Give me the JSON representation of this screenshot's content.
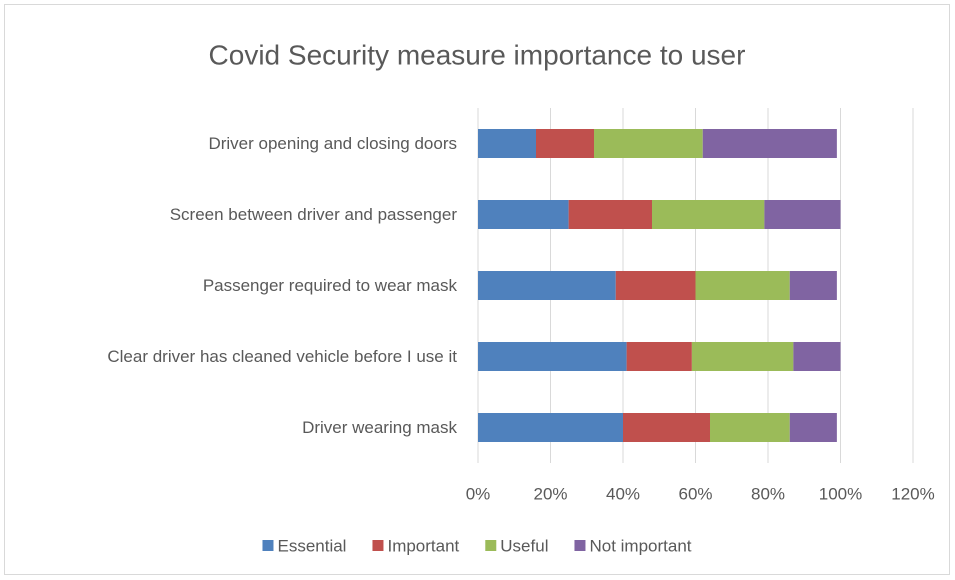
{
  "chart_data": {
    "type": "stacked-barh",
    "title": "Covid Security measure importance to user",
    "categories": [
      "Driver opening and closing doors",
      "Screen between driver and passenger",
      "Passenger required to wear mask",
      "Clear driver has cleaned vehicle before I use it",
      "Driver wearing mask"
    ],
    "series": [
      {
        "name": "Essential",
        "color": "#4f81bd",
        "values": [
          16,
          25,
          38,
          41,
          40
        ]
      },
      {
        "name": "Important",
        "color": "#c0504d",
        "values": [
          16,
          23,
          22,
          18,
          24
        ]
      },
      {
        "name": "Useful",
        "color": "#9bbb59",
        "values": [
          30,
          31,
          26,
          28,
          22
        ]
      },
      {
        "name": "Not important",
        "color": "#8064a2",
        "values": [
          37,
          21,
          13,
          13,
          13
        ]
      }
    ],
    "xlim": [
      0,
      120
    ],
    "xticks": [
      {
        "value": 0,
        "label": "0%"
      },
      {
        "value": 20,
        "label": "20%"
      },
      {
        "value": 40,
        "label": "40%"
      },
      {
        "value": 60,
        "label": "60%"
      },
      {
        "value": 80,
        "label": "80%"
      },
      {
        "value": 100,
        "label": "100%"
      },
      {
        "value": 120,
        "label": "120%"
      }
    ],
    "grid": true,
    "legend": "bottom"
  }
}
